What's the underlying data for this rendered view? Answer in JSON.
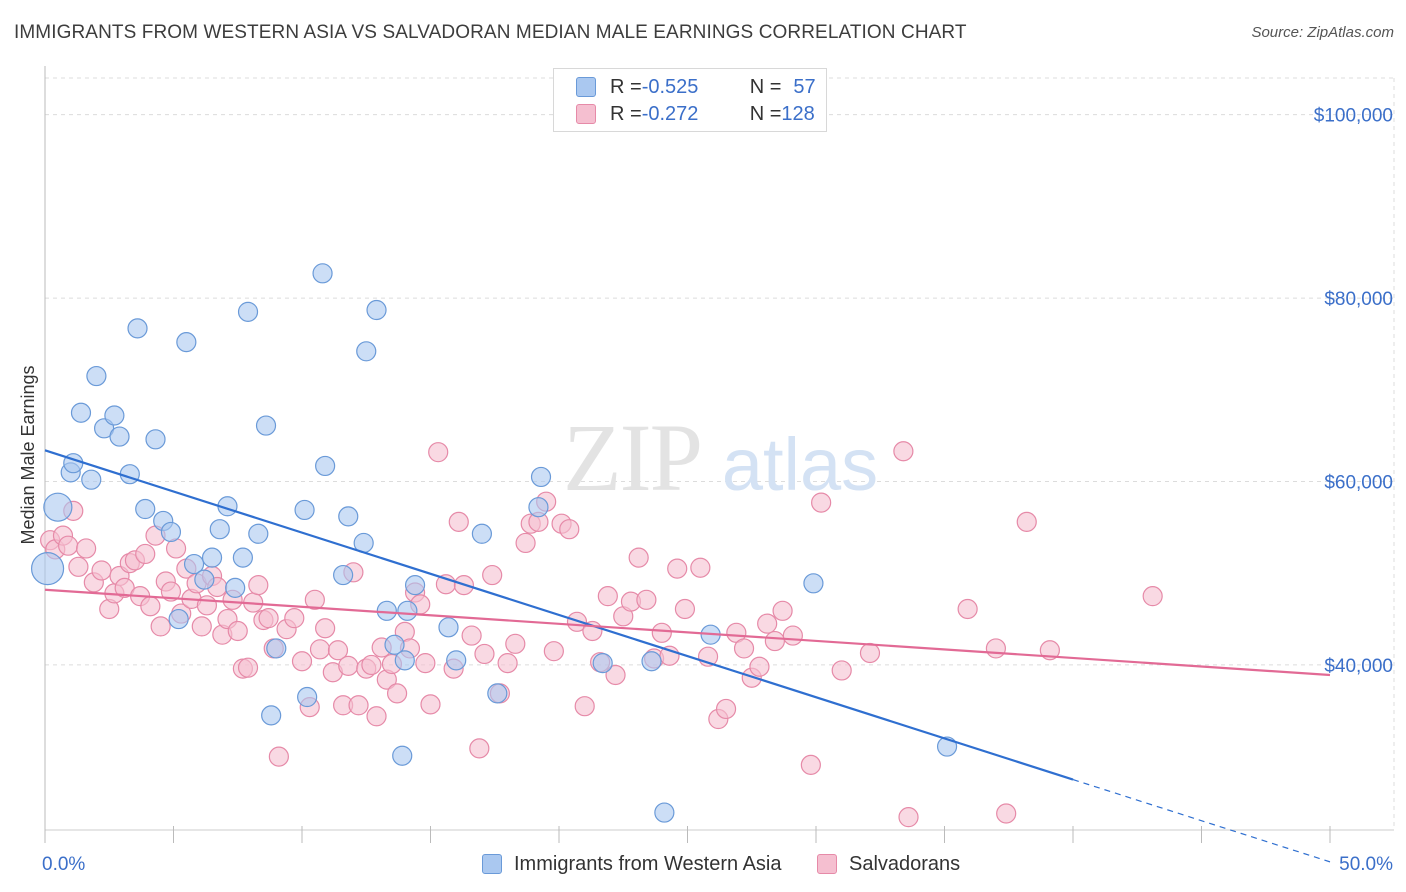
{
  "title": "IMMIGRANTS FROM WESTERN ASIA VS SALVADORAN MEDIAN MALE EARNINGS CORRELATION CHART",
  "source": "Source: ZipAtlas.com",
  "watermark": {
    "zip": "ZIP",
    "atlas": "atlas"
  },
  "colors": {
    "blue_fill": "#aac8f0",
    "blue_stroke": "#6a9ad8",
    "blue_line": "#2f6fd0",
    "pink_fill": "#f5bfd0",
    "pink_stroke": "#e68aa8",
    "pink_line": "#e26a95",
    "axis_label": "#3b6fc9",
    "grid": "#dcdcdc"
  },
  "legend": {
    "rows": [
      {
        "r_label": "R = ",
        "r_value": "-0.525",
        "n_label": "N = ",
        "n_value": "57"
      },
      {
        "r_label": "R = ",
        "r_value": "-0.272",
        "n_label": "N = ",
        "n_value": "128"
      }
    ]
  },
  "bottom_legend": [
    {
      "label": "Immigrants from Western Asia"
    },
    {
      "label": "Salvadorans"
    }
  ],
  "chart_data": {
    "type": "scatter",
    "title": "IMMIGRANTS FROM WESTERN ASIA VS SALVADORAN MEDIAN MALE EARNINGS CORRELATION CHART",
    "xlabel": "",
    "ylabel": "Median Male Earnings",
    "xlim": [
      0,
      50
    ],
    "ylim": [
      22000,
      104000
    ],
    "x_tick_labels": [
      "0.0%",
      "50.0%"
    ],
    "y_ticks": [
      40000,
      60000,
      80000,
      100000
    ],
    "y_tick_labels": [
      "$40,000",
      "$60,000",
      "$80,000",
      "$100,000"
    ],
    "grid": true,
    "legend_position": "top-center",
    "series": [
      {
        "name": "Immigrants from Western Asia",
        "r": -0.525,
        "n": 57,
        "trend": {
          "x0": 0,
          "y0": 63400,
          "x1": 40,
          "y1": 27500,
          "dashed_to_x": 50
        },
        "points": [
          [
            0.1,
            50500
          ],
          [
            0.5,
            57200
          ],
          [
            1.0,
            61000
          ],
          [
            1.1,
            62000
          ],
          [
            1.4,
            67500
          ],
          [
            1.8,
            60200
          ],
          [
            2.0,
            71500
          ],
          [
            2.3,
            65800
          ],
          [
            2.7,
            67200
          ],
          [
            2.9,
            64900
          ],
          [
            3.3,
            60800
          ],
          [
            3.6,
            76700
          ],
          [
            3.9,
            57000
          ],
          [
            4.3,
            64600
          ],
          [
            4.6,
            55700
          ],
          [
            4.9,
            54500
          ],
          [
            5.2,
            45000
          ],
          [
            5.5,
            75200
          ],
          [
            5.8,
            51000
          ],
          [
            6.2,
            49300
          ],
          [
            6.5,
            51700
          ],
          [
            6.8,
            54800
          ],
          [
            7.1,
            57300
          ],
          [
            7.4,
            48400
          ],
          [
            7.7,
            51700
          ],
          [
            7.9,
            78500
          ],
          [
            8.3,
            54300
          ],
          [
            8.6,
            66100
          ],
          [
            8.8,
            34500
          ],
          [
            9.0,
            41800
          ],
          [
            10.1,
            56900
          ],
          [
            10.2,
            36500
          ],
          [
            10.8,
            82700
          ],
          [
            10.9,
            61700
          ],
          [
            11.6,
            49800
          ],
          [
            11.8,
            56200
          ],
          [
            12.4,
            53300
          ],
          [
            12.5,
            74200
          ],
          [
            12.9,
            78700
          ],
          [
            13.3,
            45900
          ],
          [
            13.6,
            42200
          ],
          [
            13.9,
            30100
          ],
          [
            14.0,
            40500
          ],
          [
            14.1,
            45900
          ],
          [
            14.4,
            48700
          ],
          [
            15.7,
            44100
          ],
          [
            16.0,
            40500
          ],
          [
            17.0,
            54300
          ],
          [
            17.6,
            36900
          ],
          [
            19.2,
            57200
          ],
          [
            19.3,
            60500
          ],
          [
            21.7,
            40200
          ],
          [
            23.6,
            40400
          ],
          [
            24.1,
            23900
          ],
          [
            25.9,
            43300
          ],
          [
            29.9,
            48900
          ],
          [
            35.1,
            31100
          ]
        ]
      },
      {
        "name": "Salvadorans",
        "r": -0.272,
        "n": 128,
        "trend": {
          "x0": 0,
          "y0": 48200,
          "x1": 50,
          "y1": 38900
        },
        "points": [
          [
            0.2,
            53600
          ],
          [
            0.4,
            52600
          ],
          [
            0.7,
            54100
          ],
          [
            0.9,
            53000
          ],
          [
            1.1,
            56800
          ],
          [
            1.3,
            50700
          ],
          [
            1.6,
            52700
          ],
          [
            1.9,
            49000
          ],
          [
            2.2,
            50300
          ],
          [
            2.5,
            46100
          ],
          [
            2.7,
            47800
          ],
          [
            2.9,
            49700
          ],
          [
            3.1,
            48400
          ],
          [
            3.3,
            51100
          ],
          [
            3.5,
            51400
          ],
          [
            3.7,
            47500
          ],
          [
            3.9,
            52100
          ],
          [
            4.1,
            46400
          ],
          [
            4.3,
            54100
          ],
          [
            4.5,
            44200
          ],
          [
            4.7,
            49100
          ],
          [
            4.9,
            48000
          ],
          [
            5.1,
            52700
          ],
          [
            5.3,
            45600
          ],
          [
            5.5,
            50500
          ],
          [
            5.7,
            47200
          ],
          [
            5.9,
            48900
          ],
          [
            6.1,
            44200
          ],
          [
            6.3,
            46500
          ],
          [
            6.5,
            49700
          ],
          [
            6.7,
            48500
          ],
          [
            6.9,
            43300
          ],
          [
            7.1,
            45000
          ],
          [
            7.3,
            47100
          ],
          [
            7.5,
            43700
          ],
          [
            7.7,
            39600
          ],
          [
            7.9,
            39700
          ],
          [
            8.1,
            46800
          ],
          [
            8.3,
            48700
          ],
          [
            8.5,
            44900
          ],
          [
            8.7,
            45100
          ],
          [
            8.9,
            41800
          ],
          [
            9.1,
            30000
          ],
          [
            9.4,
            43900
          ],
          [
            9.7,
            45100
          ],
          [
            10.0,
            40400
          ],
          [
            10.3,
            35400
          ],
          [
            10.5,
            47100
          ],
          [
            10.7,
            41700
          ],
          [
            10.9,
            44000
          ],
          [
            11.2,
            39200
          ],
          [
            11.4,
            41600
          ],
          [
            11.6,
            35600
          ],
          [
            11.8,
            39900
          ],
          [
            12.0,
            50100
          ],
          [
            12.2,
            35600
          ],
          [
            12.5,
            39600
          ],
          [
            12.7,
            40000
          ],
          [
            12.9,
            34400
          ],
          [
            13.1,
            41900
          ],
          [
            13.3,
            38400
          ],
          [
            13.5,
            40100
          ],
          [
            13.7,
            36900
          ],
          [
            14.0,
            43600
          ],
          [
            14.2,
            41800
          ],
          [
            14.4,
            47900
          ],
          [
            14.6,
            46600
          ],
          [
            14.8,
            40200
          ],
          [
            15.0,
            35700
          ],
          [
            15.3,
            63200
          ],
          [
            15.6,
            48800
          ],
          [
            15.9,
            39600
          ],
          [
            16.1,
            55600
          ],
          [
            16.3,
            48700
          ],
          [
            16.6,
            43200
          ],
          [
            16.9,
            30900
          ],
          [
            17.1,
            41200
          ],
          [
            17.4,
            49800
          ],
          [
            17.7,
            36900
          ],
          [
            18.0,
            40200
          ],
          [
            18.3,
            42300
          ],
          [
            18.7,
            53300
          ],
          [
            18.9,
            55400
          ],
          [
            19.2,
            55600
          ],
          [
            19.5,
            57800
          ],
          [
            19.8,
            41500
          ],
          [
            20.1,
            55400
          ],
          [
            20.4,
            54800
          ],
          [
            20.7,
            44700
          ],
          [
            21.0,
            35500
          ],
          [
            21.3,
            43700
          ],
          [
            21.6,
            40300
          ],
          [
            21.9,
            47500
          ],
          [
            22.2,
            38900
          ],
          [
            22.5,
            45300
          ],
          [
            22.8,
            46900
          ],
          [
            23.1,
            51700
          ],
          [
            23.4,
            47100
          ],
          [
            23.7,
            40700
          ],
          [
            24.0,
            43500
          ],
          [
            24.3,
            41000
          ],
          [
            24.6,
            50500
          ],
          [
            24.9,
            46100
          ],
          [
            25.5,
            50600
          ],
          [
            25.8,
            40900
          ],
          [
            26.2,
            34100
          ],
          [
            26.5,
            35200
          ],
          [
            26.9,
            43500
          ],
          [
            27.2,
            41800
          ],
          [
            27.5,
            38600
          ],
          [
            27.8,
            39800
          ],
          [
            28.1,
            44500
          ],
          [
            28.4,
            42600
          ],
          [
            28.7,
            45900
          ],
          [
            29.1,
            43200
          ],
          [
            29.8,
            29100
          ],
          [
            30.2,
            57700
          ],
          [
            31.0,
            39400
          ],
          [
            32.1,
            41300
          ],
          [
            33.4,
            63300
          ],
          [
            33.6,
            23400
          ],
          [
            35.9,
            46100
          ],
          [
            37.0,
            41800
          ],
          [
            37.4,
            23800
          ],
          [
            38.2,
            55600
          ],
          [
            39.1,
            41600
          ],
          [
            43.1,
            47500
          ]
        ]
      }
    ]
  }
}
